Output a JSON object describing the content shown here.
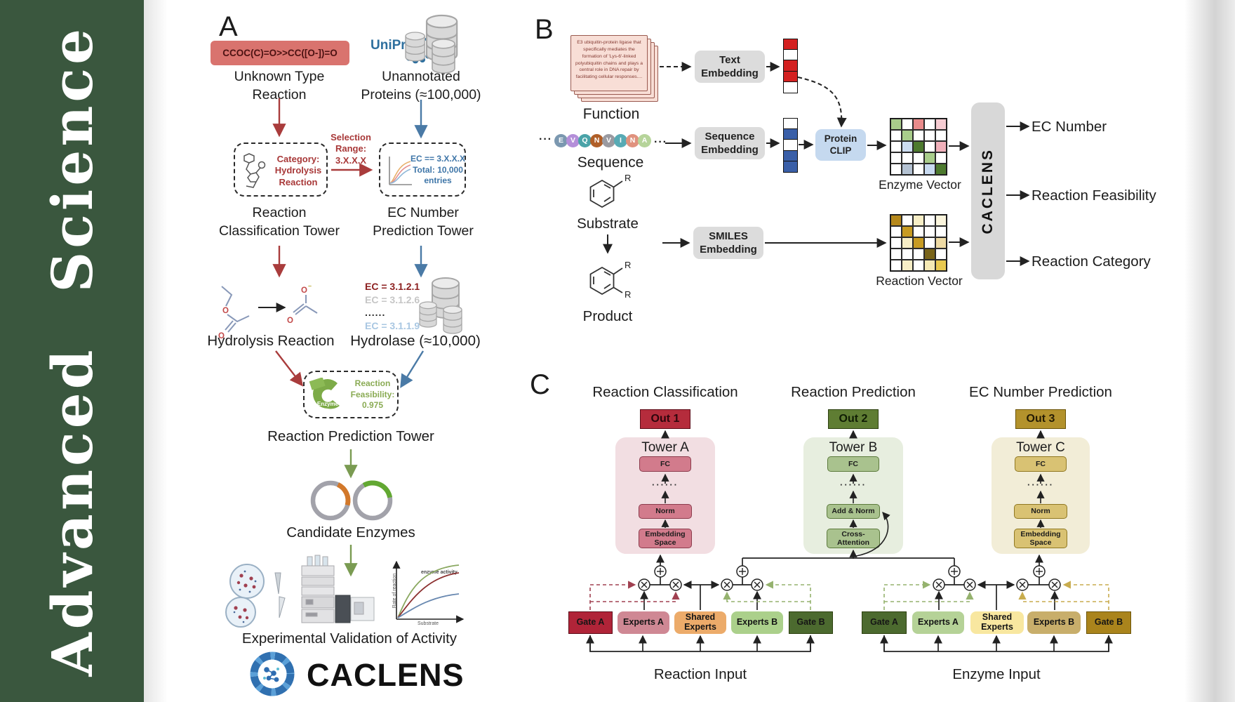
{
  "spine": {
    "title": "Advanced Science",
    "bg_color": "#3a573e"
  },
  "a": {
    "panel": "A",
    "smiles": "CCOC(C)=O>>CC([O-])=O",
    "unknown": "Unknown Type\nReaction",
    "uniprot": "UniProt",
    "unannotated": "Unannotated\nProteins (≈100,000)",
    "selection": "Selection\nRange:\n3.X.X.X",
    "category": "Category:\nHydrolysis\nReaction",
    "ecbox": "EC == 3.X.X.X\nTotal: 10,000\nentries",
    "classification_tower": "Reaction\nClassification Tower",
    "ec_tower": "EC Number\nPrediction Tower",
    "ec_list": [
      "EC = 3.1.2.1",
      "EC = 3.1.2.6",
      "......",
      "EC = 3.1.1.9"
    ],
    "ec_list_colors": [
      "#8c1f1f",
      "#c6c6c6",
      "#2a2a2a",
      "#a9c7e2"
    ],
    "hydrolysis_reaction": "Hydrolysis Reaction",
    "hydrolase": "Hydrolase (≈10,000)",
    "enzyme_badge": "Enzyme",
    "feasibility": "Reaction\nFeasibility:\n0.975",
    "prediction_tower": "Reaction Prediction Tower",
    "candidate_enzymes": "Candidate Enzymes",
    "validation": "Experimental Validation of Activity",
    "logo": "CACLENS",
    "graph_y": "Rate of reaction",
    "graph_x": "Substrate",
    "graph_note": "enzyme activity"
  },
  "b": {
    "panel": "B",
    "function_text": "E3 ubiquitin-protein ligase that specifically mediates the formation of 'Lys-6'-linked polyubiquitin chains and plays a central role in DNA repair by facilitating cellular responses....",
    "function_label": "Function",
    "sequence_label": "Sequence",
    "substrate_label": "Substrate",
    "product_label": "Product",
    "dots": "···",
    "r": "R",
    "aa": [
      "E",
      "V",
      "Q",
      "N",
      "V",
      "I",
      "N",
      "A"
    ],
    "aa_colors": [
      "#7b98b0",
      "#b48fd9",
      "#4aa3a8",
      "#b05f28",
      "#9a9aa0",
      "#58aab4",
      "#e0927e",
      "#b6d49a"
    ],
    "text_embedding": "Text\nEmbedding",
    "sequence_embedding": "Sequence\nEmbedding",
    "smiles_embedding": "SMILES\nEmbedding",
    "protein_clip": "Protein\nCLIP",
    "enzyme_vector_label": "Enzyme Vector",
    "reaction_vector_label": "Reaction Vector",
    "caclens": "CACLENS",
    "outputs": [
      "EC Number",
      "Reaction Feasibility",
      "Reaction Category"
    ],
    "text_vector_cells": [
      "#d42020",
      "#ffffff",
      "#d42020",
      "#d42020",
      "#ffffff"
    ],
    "seq_vector_cells": [
      "#ffffff",
      "#3a5fa8",
      "#ffffff",
      "#3a5fa8",
      "#3a5fa8"
    ],
    "enzyme_vector_cells": [
      "#a9cd8b",
      "#ffffff",
      "#e98b8b",
      "#ffffff",
      "#f6ccd2",
      "#ffffff",
      "#a9cd8b",
      "#ffffff",
      "#ffffff",
      "#ffffff",
      "#ffffff",
      "#ccdcf0",
      "#4d7a2e",
      "#ffffff",
      "#f0b0ba",
      "#ffffff",
      "#ffffff",
      "#ffffff",
      "#a9cd8b",
      "#ffffff",
      "#ffffff",
      "#b4c2d2",
      "#ffffff",
      "#c8daf0",
      "#4d7a2e"
    ],
    "reaction_vector_cells": [
      "#b5881b",
      "#ffffff",
      "#f7eec6",
      "#ffffff",
      "#fbf5dd",
      "#ffffff",
      "#c79b22",
      "#ffffff",
      "#ffffff",
      "#ffffff",
      "#ffffff",
      "#f7eec6",
      "#c79b22",
      "#ffffff",
      "#eedaa4",
      "#ffffff",
      "#ffffff",
      "#ffffff",
      "#79641a",
      "#ffffff",
      "#ffffff",
      "#f7eec6",
      "#ffffff",
      "#f5e9b4",
      "#e9c94f"
    ]
  },
  "c": {
    "panel": "C",
    "dots": "······",
    "cols": [
      {
        "title": "Reaction Classification",
        "out": "Out 1",
        "tower": "Tower A",
        "b1": "FC",
        "b2": "Norm",
        "b3": "Embedding\nSpace"
      },
      {
        "title": "Reaction Prediction",
        "out": "Out 2",
        "tower": "Tower B",
        "b1": "FC",
        "b2": "Add & Norm",
        "b3": "Cross-\nAttention"
      },
      {
        "title": "EC Number Prediction",
        "out": "Out 3",
        "tower": "Tower C",
        "b1": "FC",
        "b2": "Norm",
        "b3": "Embedding\nSpace"
      }
    ],
    "groups": [
      {
        "label": "Reaction Input",
        "gateA": "Gate A",
        "expA": "Experts A",
        "shared": "Shared\nExperts",
        "expB": "Experts B",
        "gateB": "Gate B"
      },
      {
        "label": "Enzyme Input",
        "gateA": "Gate A",
        "expA": "Experts A",
        "shared": "Shared\nExperts",
        "expB": "Experts B",
        "gateB": "Gate B"
      }
    ]
  }
}
